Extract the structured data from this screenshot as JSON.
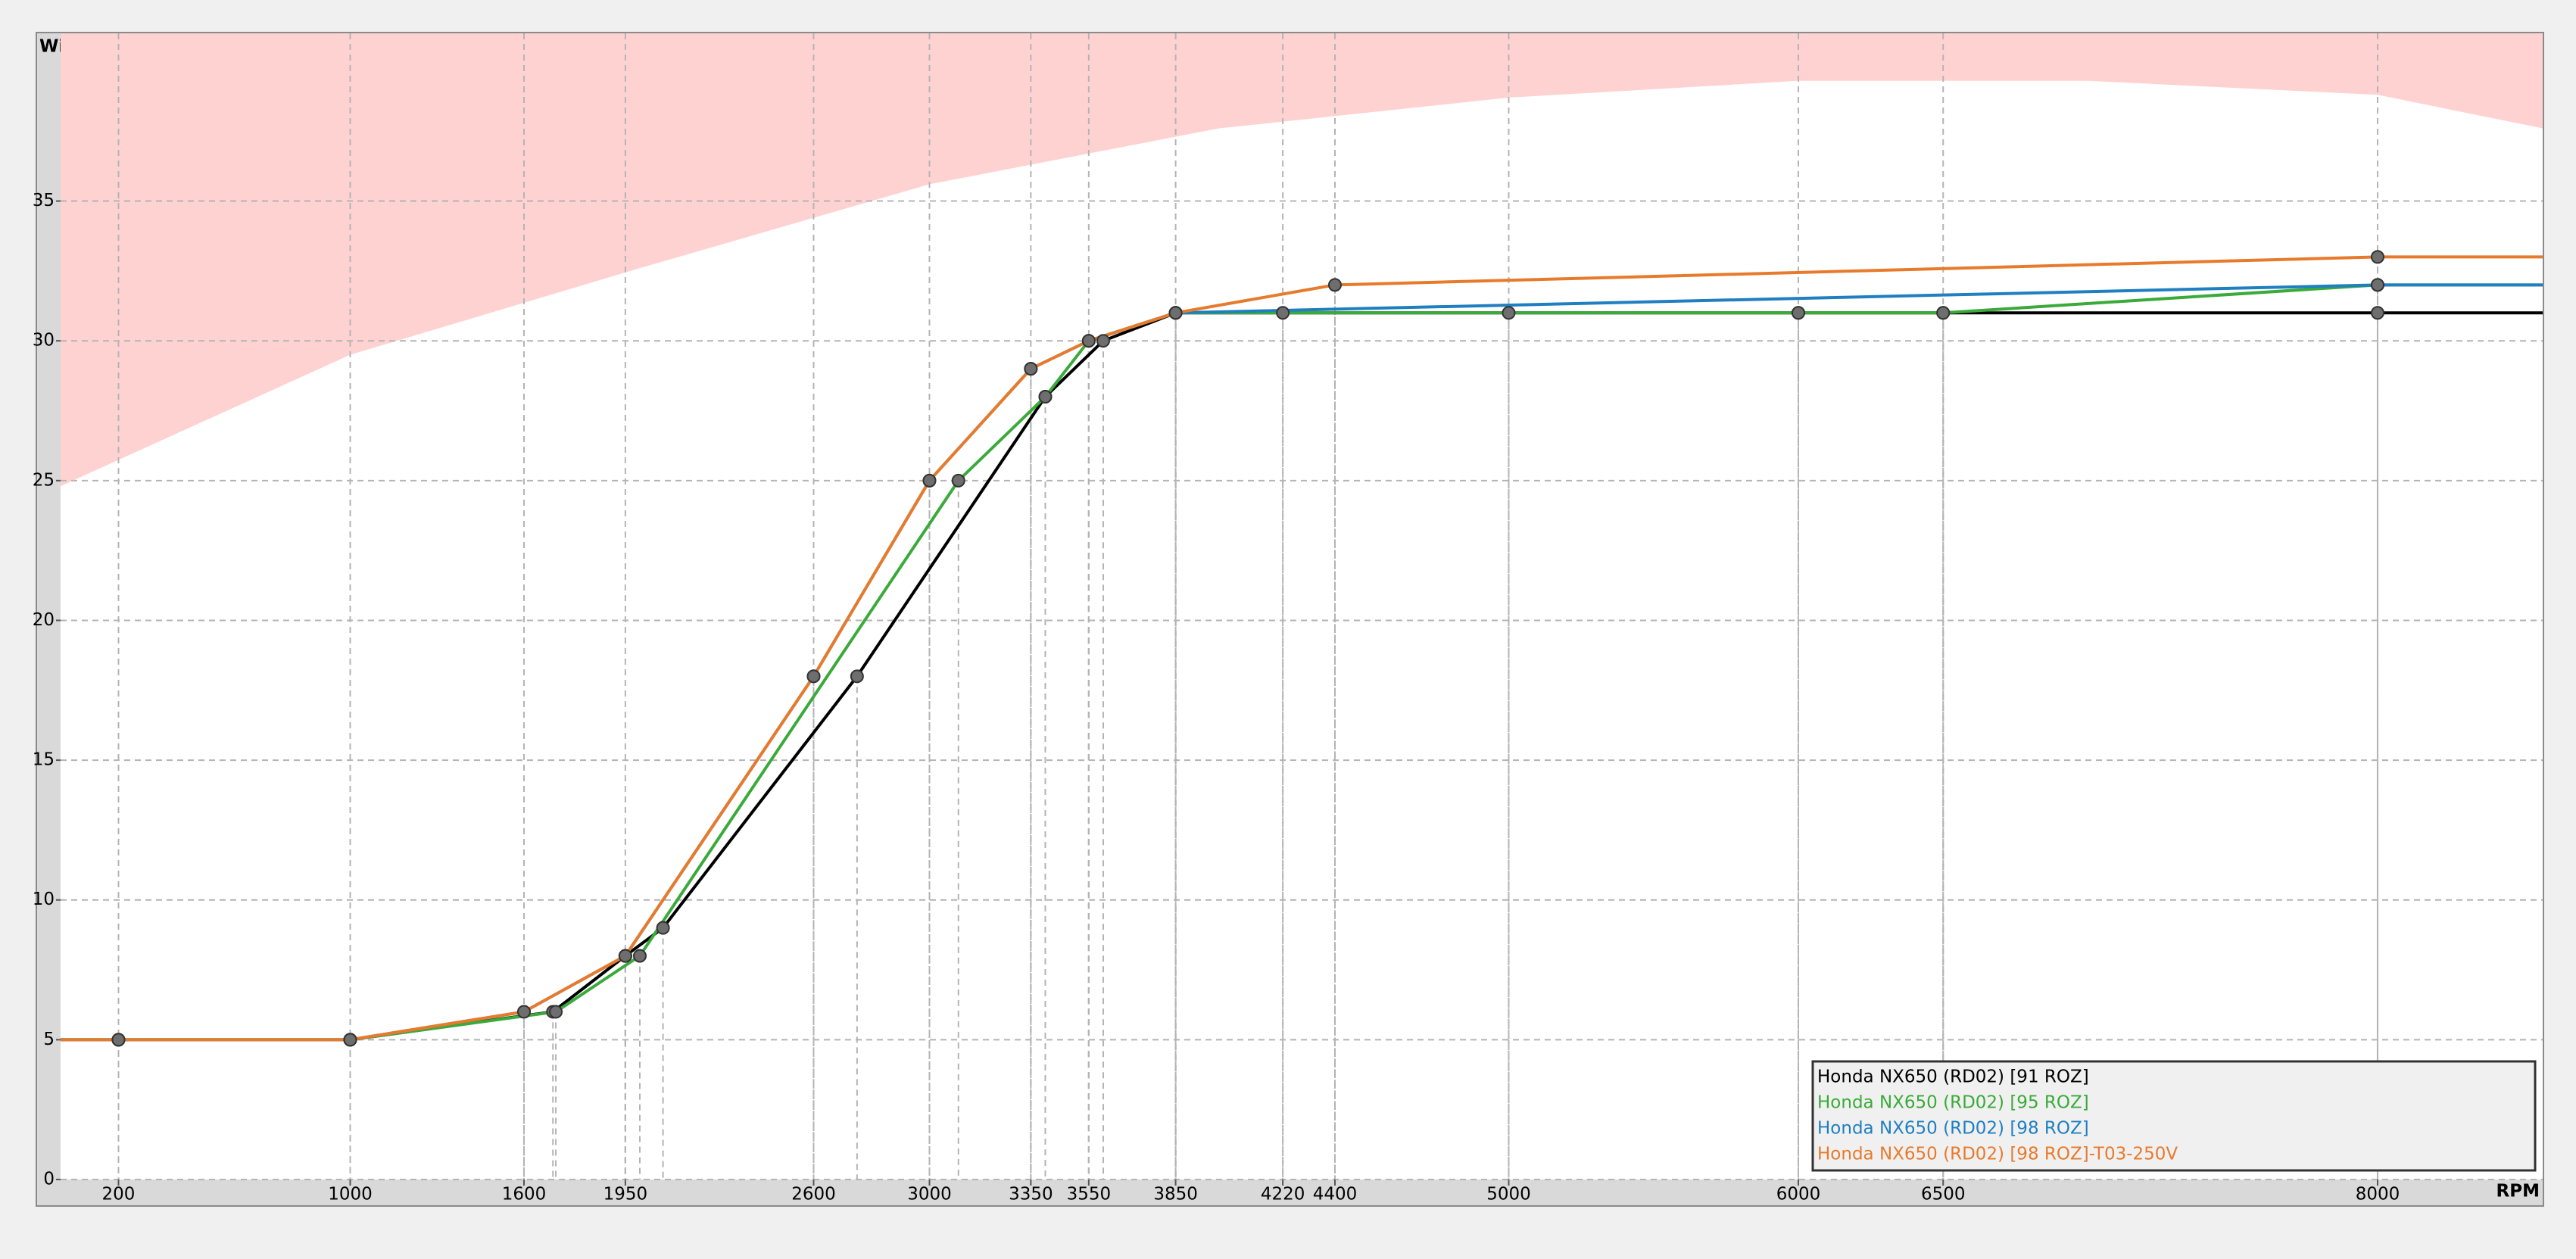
{
  "chart_data": {
    "type": "line",
    "ylabel": "Winkel",
    "xlabel": "RPM",
    "xlim": [
      0,
      8570
    ],
    "ylim": [
      0,
      41
    ],
    "xticks": [
      200,
      1000,
      1600,
      1950,
      2600,
      3000,
      3350,
      3550,
      3850,
      4220,
      4400,
      5000,
      6000,
      6500,
      8000
    ],
    "yticks": [
      0,
      5,
      10,
      15,
      20,
      25,
      30,
      35
    ],
    "grid": true,
    "legend": "lower right",
    "limit": {
      "color": "#ffd2d2",
      "x": [
        0,
        1000,
        2000,
        3000,
        4000,
        5000,
        6000,
        7000,
        8000,
        8570
      ],
      "values": [
        24.8,
        29.5,
        32.6,
        35.6,
        37.6,
        38.7,
        39.3,
        39.3,
        38.8,
        37.6
      ]
    },
    "series": [
      {
        "name": "Honda NX650 (RD02) [91 ROZ]",
        "color": "#000000",
        "x": [
          200,
          1000,
          1700,
          1950,
          2080,
          2750,
          3400,
          3600,
          3850,
          4220,
          5000,
          6000,
          6500,
          8000
        ],
        "values": [
          5,
          5,
          6,
          8,
          9,
          18,
          28,
          30,
          31,
          31,
          31,
          31,
          31,
          31
        ]
      },
      {
        "name": "Honda NX650 (RD02) [95 ROZ]",
        "color": "#3aaa3a",
        "x": [
          200,
          1000,
          1710,
          2000,
          3100,
          3400,
          3550,
          3850,
          6000,
          6500,
          8000
        ],
        "values": [
          5,
          5,
          6,
          8,
          25,
          28,
          30,
          31,
          31,
          31,
          32
        ]
      },
      {
        "name": "Honda NX650 (RD02) [98 ROZ]",
        "color": "#1f7fc0",
        "x": [
          200,
          1000,
          1600,
          1950,
          2600,
          3000,
          3350,
          3550,
          3850,
          8000
        ],
        "values": [
          5,
          5,
          6,
          8,
          18,
          25,
          29,
          30,
          31,
          32
        ]
      },
      {
        "name": "Honda NX650 (RD02) [98 ROZ]-T03-250V",
        "color": "#e87a2c",
        "x": [
          200,
          1000,
          1600,
          1950,
          2600,
          3000,
          3350,
          3550,
          3850,
          4400,
          8000
        ],
        "values": [
          5,
          5,
          6,
          8,
          18,
          25,
          29,
          30,
          31,
          32,
          33
        ]
      }
    ]
  }
}
